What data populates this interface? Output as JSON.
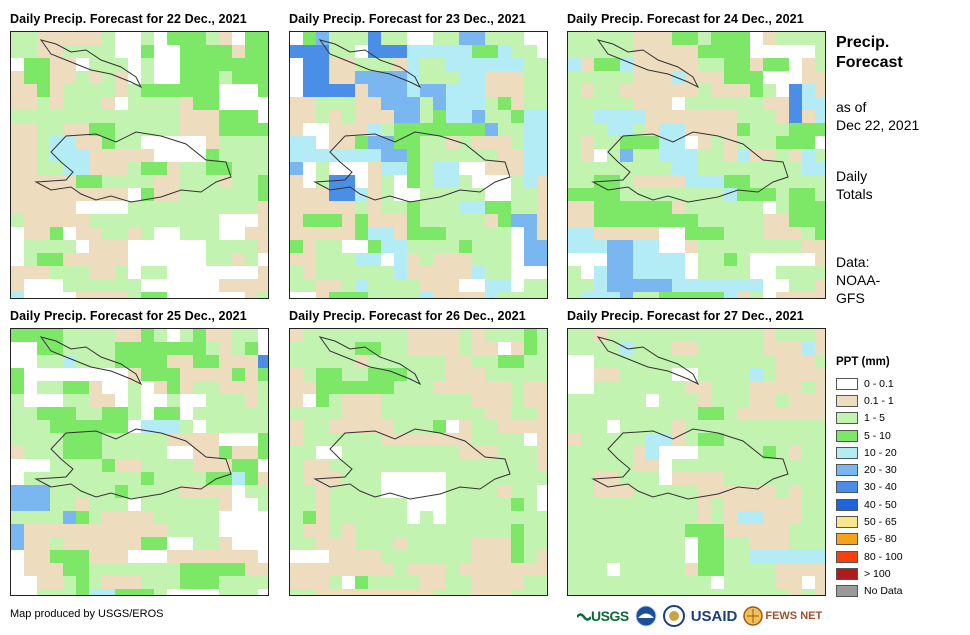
{
  "panels": [
    {
      "title": "Daily Precip. Forecast for 22 Dec., 2021"
    },
    {
      "title": "Daily Precip. Forecast for 23 Dec., 2021"
    },
    {
      "title": "Daily Precip. Forecast for 24 Dec., 2021"
    },
    {
      "title": "Daily Precip. Forecast for 25 Dec., 2021"
    },
    {
      "title": "Daily Precip. Forecast for 26 Dec., 2021"
    },
    {
      "title": "Daily Precip. Forecast for 27 Dec., 2021"
    }
  ],
  "sidebar": {
    "title_line1": "Precip.",
    "title_line2": "Forecast",
    "asof_line1": "as of",
    "asof_line2": "Dec 22, 2021",
    "totals_line1": "Daily",
    "totals_line2": "Totals",
    "data_line1": "Data:",
    "data_line2": "NOAA-",
    "data_line3": "GFS"
  },
  "legend": {
    "title": "PPT (mm)",
    "items": [
      {
        "label": "0 - 0.1",
        "color": "#ffffff"
      },
      {
        "label": "0.1 - 1",
        "color": "#eedcbe"
      },
      {
        "label": "1 - 5",
        "color": "#c2f3b0"
      },
      {
        "label": "5 - 10",
        "color": "#7de868"
      },
      {
        "label": "10 - 20",
        "color": "#b4ecf6"
      },
      {
        "label": "20 - 30",
        "color": "#7ab6f0"
      },
      {
        "label": "30 - 40",
        "color": "#4a8ee8"
      },
      {
        "label": "40 - 50",
        "color": "#1f63dd"
      },
      {
        "label": "50 - 65",
        "color": "#fde58a"
      },
      {
        "label": "65 - 80",
        "color": "#f7a21b"
      },
      {
        "label": "80 - 100",
        "color": "#f64010"
      },
      {
        "label": "> 100",
        "color": "#b01c1c"
      },
      {
        "label": "No Data",
        "color": "#9a9a9a"
      }
    ]
  },
  "credit": "Map produced by USGS/EROS",
  "logos": {
    "usgs": "USGS",
    "usaid": "USAID",
    "fewsnet": "FEWS NET"
  }
}
